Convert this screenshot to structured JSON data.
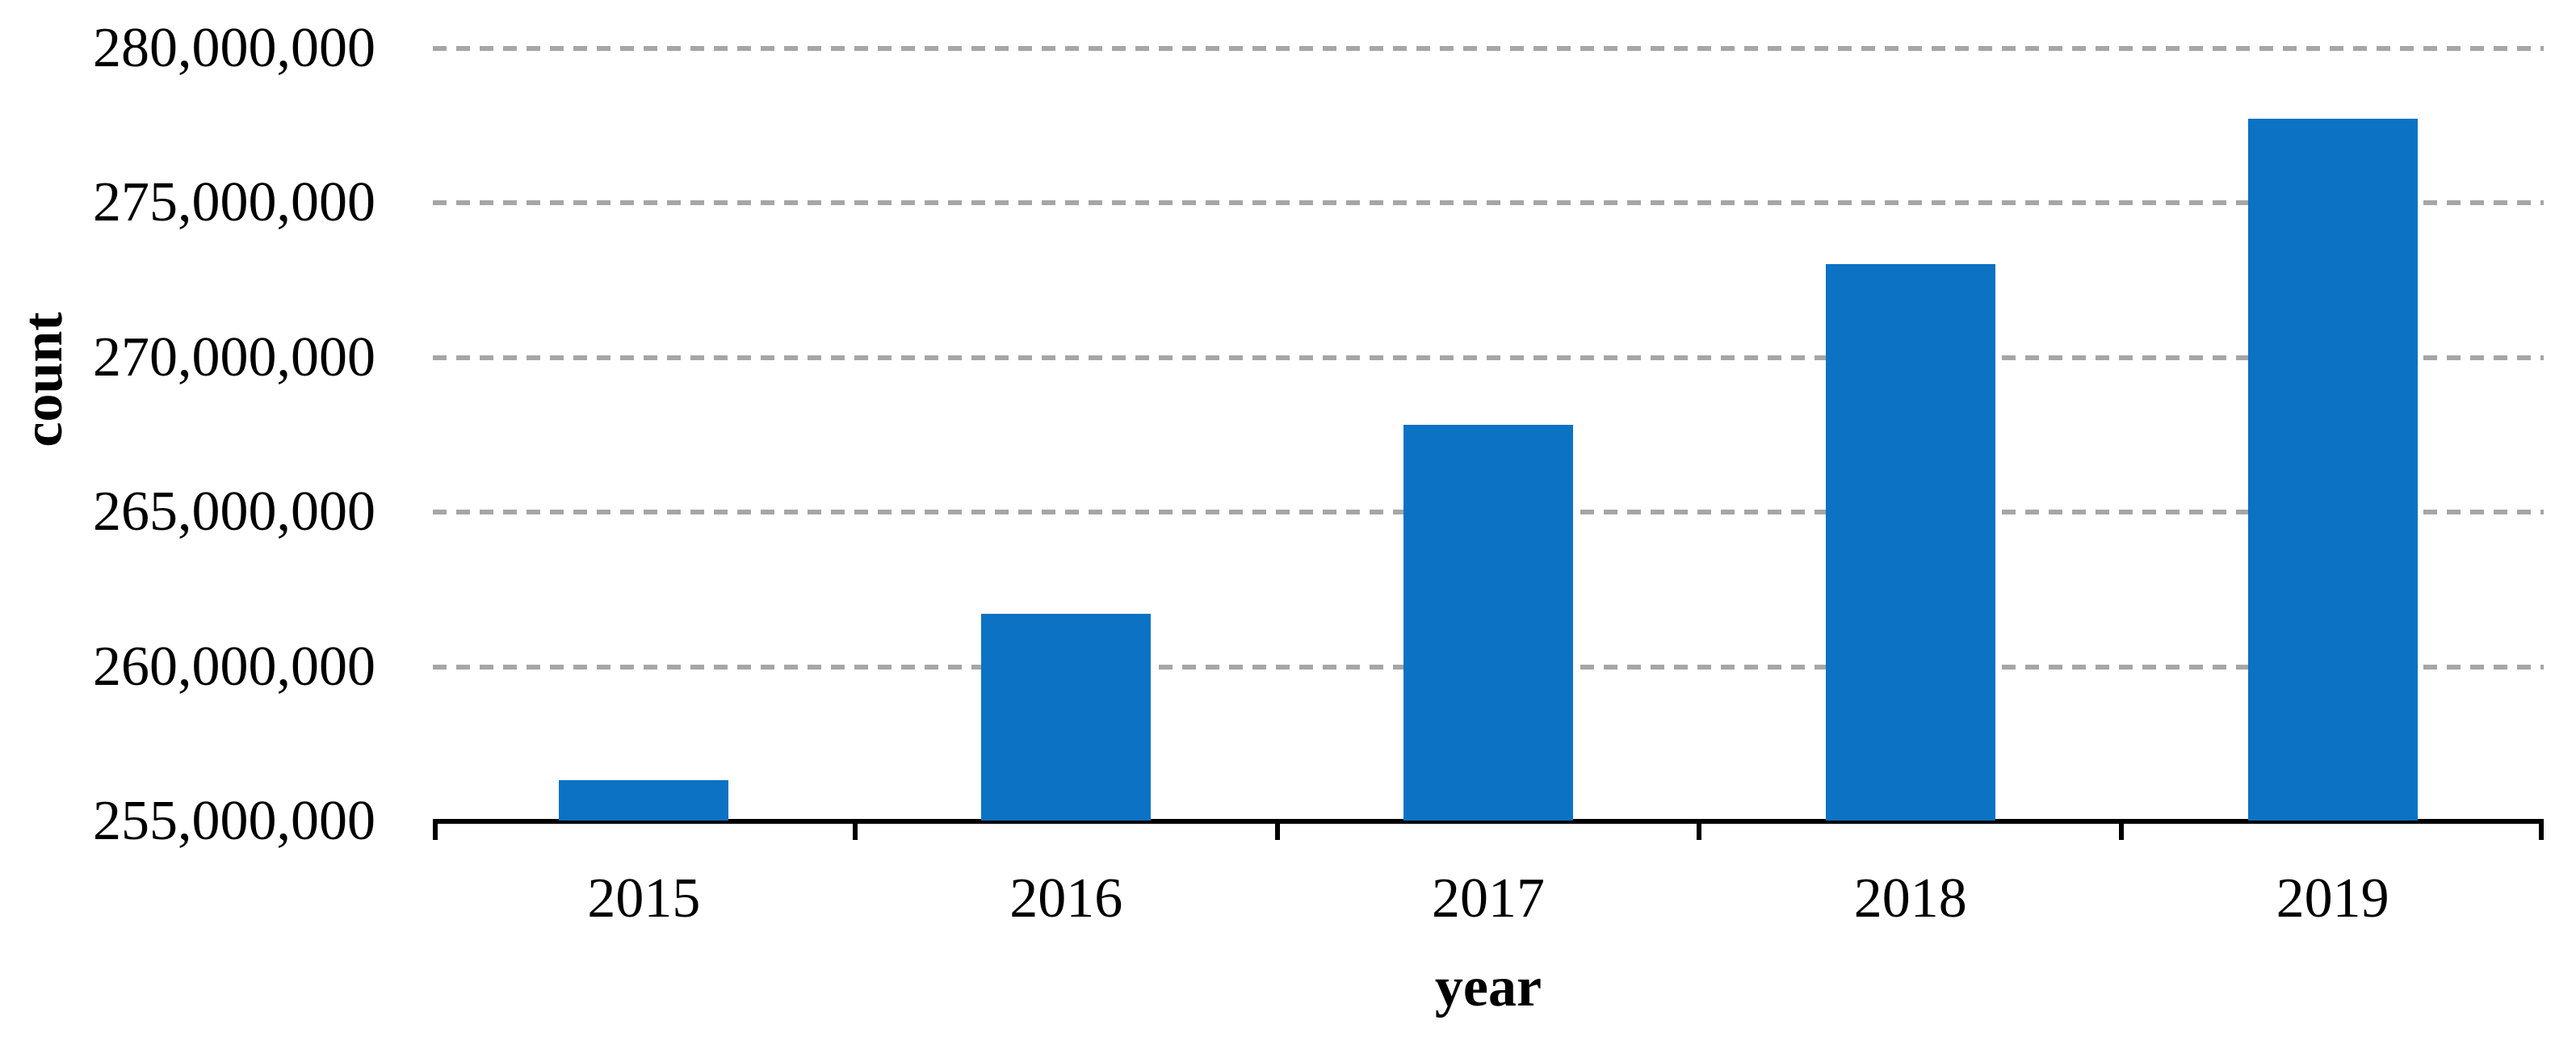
{
  "chart_data": {
    "type": "bar",
    "title": "",
    "xlabel": "year",
    "ylabel": "count",
    "categories": [
      "2015",
      "2016",
      "2017",
      "2018",
      "2019"
    ],
    "values": [
      256300000,
      261700000,
      267800000,
      273000000,
      277700000
    ],
    "ylim": [
      255000000,
      280000000
    ],
    "ytick_step": 5000000,
    "ytick_labels": [
      "255,000,000",
      "260,000,000",
      "265,000,000",
      "270,000,000",
      "275,000,000",
      "280,000,000"
    ],
    "grid": "horizontal-dashed",
    "legend": "none",
    "colors": {
      "bar": "#0b72c4",
      "gridline": "#a6a6a6",
      "axis": "#000000",
      "text": "#000000",
      "background": "#ffffff"
    }
  }
}
